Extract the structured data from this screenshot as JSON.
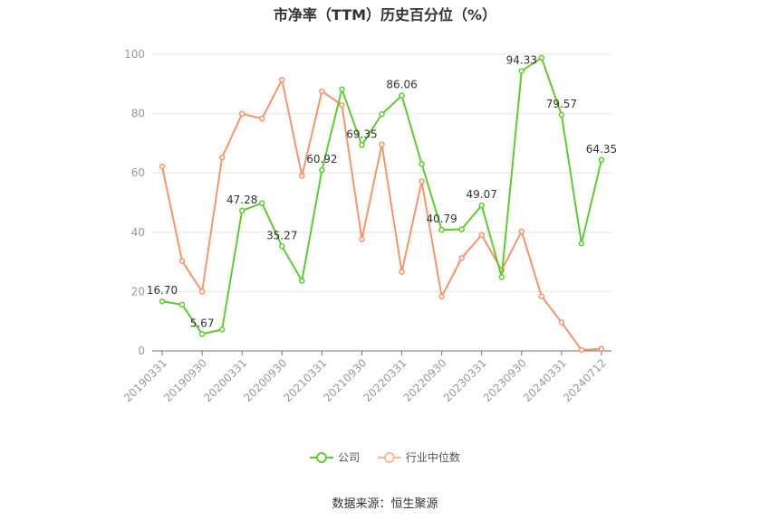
{
  "chart_data": {
    "type": "line",
    "title": "市净率（TTM）历史百分位（%）",
    "source": "数据来源：恒生聚源",
    "ylim": [
      0,
      100
    ],
    "yticks": [
      "0",
      "20",
      "40",
      "60",
      "80",
      "100"
    ],
    "grid": true,
    "legend_position": "bottom",
    "x": [
      "20190331",
      "20190630",
      "20190930",
      "20191231",
      "20200331",
      "20200630",
      "20200930",
      "20201231",
      "20210331",
      "20210630",
      "20210930",
      "20211231",
      "20220331",
      "20220630",
      "20220930",
      "20221231",
      "20230331",
      "20230630",
      "20230930",
      "20231231",
      "20240331",
      "20240630",
      "20240712"
    ],
    "xtick_labels": [
      "20190331",
      "20190930",
      "20200331",
      "20200930",
      "20210331",
      "20210930",
      "20220331",
      "20220930",
      "20230331",
      "20230930",
      "20240331",
      "20240712"
    ],
    "series": [
      {
        "name": "公司",
        "color": "#5fca31",
        "values": [
          16.7,
          15.6,
          5.67,
          7.2,
          47.28,
          49.8,
          35.27,
          23.6,
          60.92,
          88.2,
          69.35,
          79.8,
          86.06,
          63.0,
          40.79,
          41.0,
          49.07,
          24.9,
          94.33,
          98.8,
          79.57,
          36.2,
          64.35
        ],
        "labels": [
          "16.70",
          "",
          "5.67",
          "",
          "47.28",
          "",
          "35.27",
          "",
          "60.92",
          "",
          "69.35",
          "",
          "86.06",
          "",
          "40.79",
          "",
          "49.07",
          "",
          "94.33",
          "",
          "79.57",
          "",
          "64.35"
        ]
      },
      {
        "name": "行业中位数",
        "color": "#f4956a",
        "values": [
          62.2,
          30.3,
          20.0,
          65.2,
          79.9,
          78.3,
          91.4,
          59.0,
          87.5,
          82.9,
          37.6,
          69.6,
          26.6,
          57.1,
          18.3,
          31.3,
          39.1,
          27.2,
          40.3,
          18.4,
          9.6,
          0.3,
          0.7
        ]
      }
    ]
  }
}
